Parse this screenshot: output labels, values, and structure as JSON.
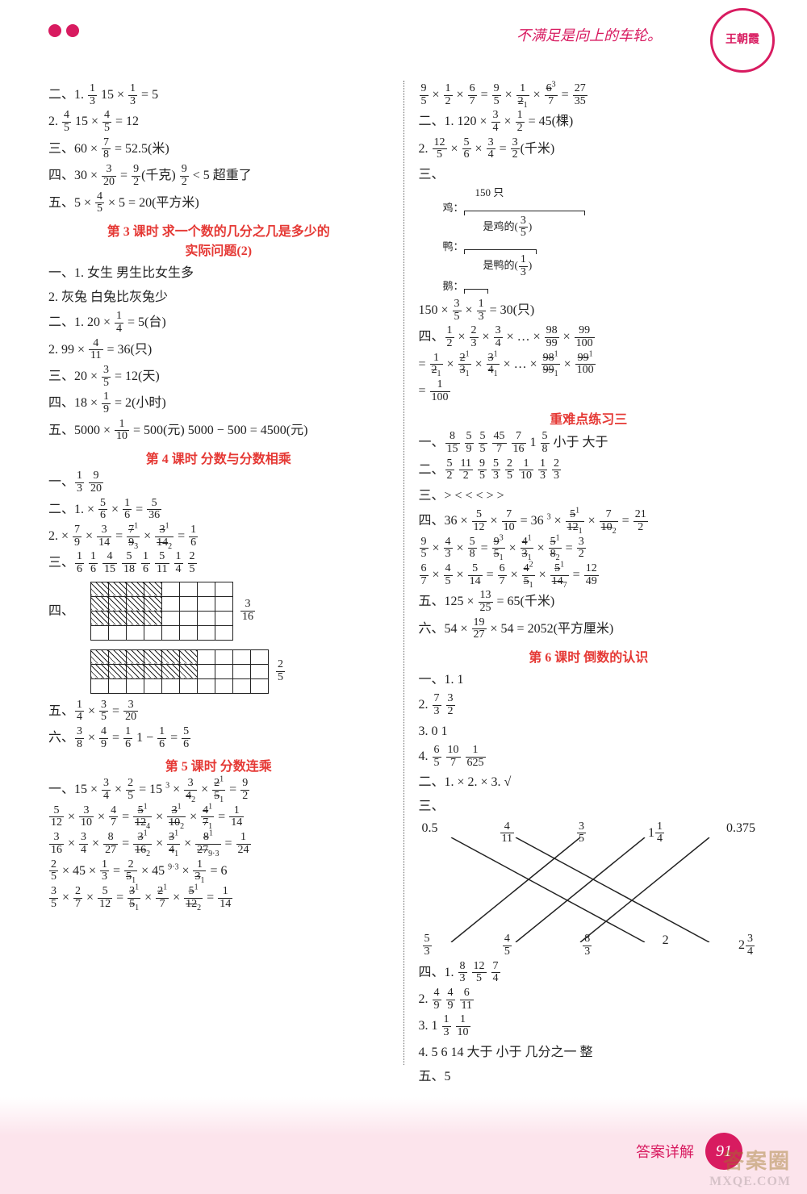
{
  "header": {
    "slogan": "不满足是向上的车轮。",
    "badge": "王朝霞"
  },
  "accent_color": "#d81b60",
  "red": "#e53935",
  "page_number": "91",
  "footer_text": "答案详解",
  "watermark_top": "答案圈",
  "watermark_bottom": "MXQE.COM",
  "left": {
    "s2": {
      "l1": {
        "pre": "二、1. ",
        "f1n": "1",
        "f1d": "3",
        "mid": "  15 × ",
        "f2n": "1",
        "f2d": "3",
        "eq": " = 5"
      },
      "l2": {
        "pre": "      2. ",
        "f1n": "4",
        "f1d": "5",
        "mid": "  15 × ",
        "f2n": "4",
        "f2d": "5",
        "eq": " = 12"
      },
      "l3": {
        "pre": "三、60 × ",
        "f1n": "7",
        "f1d": "8",
        "eq": " = 52.5(米)"
      },
      "l4": {
        "pre": "四、30 × ",
        "f1n": "3",
        "f1d": "20",
        "mid": " = ",
        "f2n": "9",
        "f2d": "2",
        "tail": "(千克)   ",
        "f3n": "9",
        "f3d": "2",
        "tail2": " < 5   超重了"
      },
      "l5": {
        "pre": "五、5 × ",
        "f1n": "4",
        "f1d": "5",
        "eq": " × 5 = 20(平方米)"
      }
    },
    "title3": "第 3 课时  求一个数的几分之几是多少的",
    "title3b": "实际问题(2)",
    "s3": {
      "l1": "一、1. 女生    男生比女生多",
      "l2": "      2. 灰兔    白兔比灰兔少",
      "l3": {
        "pre": "二、1. 20 × ",
        "f1n": "1",
        "f1d": "4",
        "eq": " = 5(台)"
      },
      "l4": {
        "pre": "      2. 99 × ",
        "f1n": "4",
        "f1d": "11",
        "eq": " = 36(只)"
      },
      "l5": {
        "pre": "三、20 × ",
        "f1n": "3",
        "f1d": "5",
        "eq": " = 12(天)"
      },
      "l6": {
        "pre": "四、18 × ",
        "f1n": "1",
        "f1d": "9",
        "eq": " = 2(小时)"
      },
      "l7": {
        "pre": "五、5000 × ",
        "f1n": "1",
        "f1d": "10",
        "eq": " = 500(元)   5000 − 500 = 4500(元)"
      }
    },
    "title4": "第 4 课时  分数与分数相乘",
    "s4": {
      "l1": {
        "pre": "一、",
        "f1n": "1",
        "f1d": "3",
        "sp": "   ",
        "f2n": "9",
        "f2d": "20"
      },
      "l2": {
        "pre": "二、1. × ",
        "f1n": "5",
        "f1d": "6",
        "m": " × ",
        "f2n": "1",
        "f2d": "6",
        "eq": " = ",
        "f3n": "5",
        "f3d": "36"
      },
      "l3": {
        "pre": "      2. × ",
        "f1n": "7",
        "f1d": "9",
        "m": " × ",
        "f2n": "3",
        "f2d": "14",
        "eq2": " = ",
        "a1n": "7",
        "a1d": "9",
        "a1sn": "1",
        "a1sd": "3",
        "m2": " × ",
        "a2n": "3",
        "a2d": "14",
        "a2sn": "1",
        "a2sd": "2",
        "eq": " = ",
        "f3n": "1",
        "f3d": "6"
      },
      "l4": {
        "pre": "三、",
        "vals": [
          [
            "1",
            "6"
          ],
          [
            "1",
            "6"
          ],
          [
            "4",
            "15"
          ],
          [
            "5",
            "18"
          ],
          [
            "1",
            "6"
          ],
          [
            "5",
            "11"
          ],
          [
            "1",
            "4"
          ],
          [
            "2",
            "5"
          ]
        ]
      },
      "four_label": "四、",
      "grid1": {
        "rows": 4,
        "cols": 8,
        "hatch_rows": 3,
        "hatch_cols": 4,
        "resn": "3",
        "resd": "16"
      },
      "grid2": {
        "rows": 3,
        "cols": 10,
        "hatch_rows": 2,
        "hatch_cols": 6,
        "resn": "2",
        "resd": "5"
      },
      "l5": {
        "pre": "五、",
        "f1n": "1",
        "f1d": "4",
        "m": " × ",
        "f2n": "3",
        "f2d": "5",
        "eq": " = ",
        "f3n": "3",
        "f3d": "20"
      },
      "l6": {
        "pre": "六、",
        "f1n": "3",
        "f1d": "8",
        "m": " × ",
        "f2n": "4",
        "f2d": "9",
        "eq": " = ",
        "f3n": "1",
        "f3d": "6",
        "sp": "   1 − ",
        "f4n": "1",
        "f4d": "6",
        "eq2": " = ",
        "f5n": "5",
        "f5d": "6"
      }
    },
    "title5": "第 5 课时  分数连乘",
    "s5": {
      "l1": {
        "pre": "一、15 × ",
        "f1n": "3",
        "f1d": "4",
        "m": " × ",
        "f2n": "2",
        "f2d": "5",
        "eq": " = 15 ",
        "sn1": "3",
        "m2": " × ",
        "f3n": "3",
        "f3d": "4",
        "sd2": "2",
        "m3": " × ",
        "f4n": "2",
        "f4d": "5",
        "sn4": "1",
        "sd4": "1",
        "eq2": " = ",
        "f5n": "9",
        "f5d": "2"
      },
      "l2": {
        "pre": "     ",
        "f1n": "5",
        "f1d": "12",
        "m": " × ",
        "f2n": "3",
        "f2d": "10",
        "m2": " × ",
        "f3n": "4",
        "f3d": "7",
        "eq": " = ",
        "a1n": "5",
        "a1d": "12",
        "a1sn": "1",
        "a1sd": "4",
        "m3": " × ",
        "a2n": "3",
        "a2d": "10",
        "a2sn": "1",
        "a2sd": "2",
        "m4": " × ",
        "a3n": "4",
        "a3d": "7",
        "a3sn": "1",
        "a3sd": "1",
        "eq2": " = ",
        "f4n": "1",
        "f4d": "14"
      },
      "l3": {
        "pre": "     ",
        "f1n": "3",
        "f1d": "16",
        "m": " × ",
        "f2n": "3",
        "f2d": "4",
        "m2": " × ",
        "f3n": "8",
        "f3d": "27",
        "eq": " = ",
        "a1n": "3",
        "a1d": "16",
        "a1sn": "1",
        "a1sd": "2",
        "m3": " × ",
        "a2n": "3",
        "a2d": "4",
        "a2sn": "1",
        "a2sd": "1",
        "m4": " × ",
        "a3n": "8",
        "a3d": "27",
        "a3sn": "1",
        "a3sd": "9·3",
        "eq2": " = ",
        "f4n": "1",
        "f4d": "24"
      },
      "l4": {
        "pre": "     ",
        "f1n": "2",
        "f1d": "5",
        "m": " × 45 × ",
        "f2n": "1",
        "f2d": "3",
        "eq": " = ",
        "a1n": "2",
        "a1d": "5",
        "a1sd": "1",
        "m2": " × 45 ",
        "sn": "9",
        "sn2": "3",
        "m3": " × ",
        "a2n": "1",
        "a2d": "3",
        "a2sd": "1",
        "eq2": " = 6"
      },
      "l5": {
        "pre": "     ",
        "f1n": "3",
        "f1d": "5",
        "m": " × ",
        "f2n": "2",
        "f2d": "7",
        "m2": " × ",
        "f3n": "5",
        "f3d": "12",
        "eq": " = ",
        "a1n": "3",
        "a1d": "5",
        "a1sn": "1",
        "a1sd": "1",
        "m3": " × ",
        "a2n": "2",
        "a2d": "7",
        "a2sn": "1",
        "m4": " × ",
        "a3n": "5",
        "a3d": "12",
        "a3sn": "1",
        "a3sd": "2",
        "eq2": " = ",
        "f4n": "1",
        "f4d": "14"
      }
    }
  },
  "right": {
    "top": {
      "l1": {
        "pre": "",
        "f1n": "9",
        "f1d": "5",
        "m": " × ",
        "f2n": "1",
        "f2d": "2",
        "m2": " × ",
        "f3n": "6",
        "f3d": "7",
        "eq": " = ",
        "a1n": "9",
        "a1d": "5",
        "m3": " × ",
        "a2n": "1",
        "a2d": "2",
        "a2sd": "1",
        "m4": " × ",
        "a3n": "6",
        "a3d": "7",
        "a3sn": "3",
        "eq2": " = ",
        "f4n": "27",
        "f4d": "35"
      },
      "l2": {
        "pre": "二、1. 120 × ",
        "f1n": "3",
        "f1d": "4",
        "m": " × ",
        "f2n": "1",
        "f2d": "2",
        "eq": " = 45(棵)"
      },
      "l3": {
        "pre": "      2. ",
        "f1n": "12",
        "f1d": "5",
        "m": " × ",
        "f2n": "5",
        "f2d": "6",
        "m2": " × ",
        "f3n": "3",
        "f3d": "4",
        "eq": " = ",
        "f4n": "3",
        "f4d": "2",
        "t": "(千米)"
      },
      "diag_label": "三、",
      "diag": {
        "total": "150 只",
        "row_ji": "鸡：",
        "ji_note_pre": "是鸡的",
        "ji_note_n": "3",
        "ji_note_d": "5",
        "row_ya": "鸭：",
        "ya_note_pre": "是鸭的",
        "ya_note_n": "1",
        "ya_note_d": "3",
        "row_e": "鹅："
      },
      "l4": {
        "pre": "    150 × ",
        "f1n": "3",
        "f1d": "5",
        "m": " × ",
        "f2n": "1",
        "f2d": "3",
        "eq": " = 30(只)"
      },
      "l5p": {
        "pre": "四、",
        "f1n": "1",
        "f1d": "2",
        "m": " × ",
        "f2n": "2",
        "f2d": "3",
        "m2": " × ",
        "f3n": "3",
        "f3d": "4",
        "dots": " × … × ",
        "f4n": "98",
        "f4d": "99",
        "m3": " × ",
        "f5n": "99",
        "f5d": "100"
      },
      "l5q": {
        "pre": "    = ",
        "a1n": "1",
        "a1d": "2",
        "a1sd": "1",
        "m": " × ",
        "a2n": "2",
        "a2d": "3",
        "a2sn": "1",
        "a2sd": "1",
        "m2": " × ",
        "a3n": "3",
        "a3d": "4",
        "a3sn": "1",
        "a3sd": "1",
        "dots": " × … × ",
        "a4n": "98",
        "a4d": "99",
        "a4sn": "1",
        "a4sd": "1",
        "m3": " × ",
        "a5n": "99",
        "a5d": "100",
        "a5sn": "1"
      },
      "l5r": {
        "pre": "    = ",
        "f1n": "1",
        "f1d": "100"
      }
    },
    "titleZ": "重难点练习三",
    "sZ": {
      "l1": {
        "pre": "一、",
        "vals": [
          [
            "8",
            "15"
          ],
          [
            "5",
            "9"
          ],
          [
            "5",
            "5"
          ],
          [
            "45",
            "7"
          ],
          [
            "7",
            "16"
          ]
        ],
        "tail": "  1   ",
        "f6n": "5",
        "f6d": "8",
        "t2": "  小于    大于"
      },
      "l2": {
        "pre": "二、",
        "vals": [
          [
            "5",
            "2"
          ],
          [
            "11",
            "2"
          ],
          [
            "9",
            "5"
          ],
          [
            "5",
            "3"
          ],
          [
            "2",
            "5"
          ],
          [
            "1",
            "10"
          ],
          [
            "1",
            "3"
          ],
          [
            "2",
            "3"
          ]
        ]
      },
      "l3": "三、>  <  <  <  >  >",
      "l4": {
        "pre": "四、36 × ",
        "f1n": "5",
        "f1d": "12",
        "m": " × ",
        "f2n": "7",
        "f2d": "10",
        "eq": " = 36 ",
        "sn": "3",
        "m2": " × ",
        "a1n": "5",
        "a1d": "12",
        "a1sn": "1",
        "a1sd": "1",
        "m3": " × ",
        "a2n": "7",
        "a2d": "10",
        "a2sd": "2",
        "eq2": " = ",
        "f3n": "21",
        "f3d": "2"
      },
      "l5": {
        "pre": "",
        "f1n": "9",
        "f1d": "5",
        "m": " × ",
        "f2n": "4",
        "f2d": "3",
        "m2": " × ",
        "f3n": "5",
        "f3d": "8",
        "eq": " = ",
        "a1n": "9",
        "a1d": "5",
        "a1sn": "3",
        "a1sd": "1",
        "m3": " × ",
        "a2n": "4",
        "a2d": "3",
        "a2sn": "1",
        "a2sd": "1",
        "m4": " × ",
        "a3n": "5",
        "a3d": "8",
        "a3sn": "1",
        "a3sd": "2",
        "eq2": " = ",
        "f4n": "3",
        "f4d": "2"
      },
      "l6": {
        "pre": "",
        "f1n": "6",
        "f1d": "7",
        "m": " × ",
        "f2n": "4",
        "f2d": "5",
        "m2": " × ",
        "f3n": "5",
        "f3d": "14",
        "eq": " = ",
        "a1n": "6",
        "a1d": "7",
        "m3": " × ",
        "a2n": "4",
        "a2d": "5",
        "a2sn": "2",
        "a2sd": "1",
        "m4": " × ",
        "a3n": "5",
        "a3d": "14",
        "a3sn": "1",
        "a3sd": "7",
        "eq2": " = ",
        "f4n": "12",
        "f4d": "49"
      },
      "l7": {
        "pre": "五、125 × ",
        "f1n": "13",
        "f1d": "25",
        "eq": " = 65(千米)"
      },
      "l8": {
        "pre": "六、54 × ",
        "f1n": "19",
        "f1d": "27",
        "eq": " × 54 = 2052(平方厘米)"
      }
    },
    "title6": "第 6 课时  倒数的认识",
    "s6": {
      "l1": "一、1. 1",
      "l2": {
        "pre": "      2. ",
        "f1n": "7",
        "f1d": "3",
        "sp": "   ",
        "f2n": "3",
        "f2d": "2"
      },
      "l3": "      3. 0   1",
      "l4": {
        "pre": "      4. ",
        "f1n": "6",
        "f1d": "5",
        "sp": "   ",
        "f2n": "10",
        "f2d": "7",
        "sp2": "   ",
        "f3n": "1",
        "f3d": "625"
      },
      "l5": "二、1. ×   2. ×   3. √",
      "match_top": [
        "0.5",
        "4/11",
        "3/5",
        "1 1/4",
        "0.375"
      ],
      "match_bot": [
        "5/3",
        "4/5",
        "8/3",
        "2",
        "2 3/4"
      ],
      "match_lines": [
        [
          0,
          3
        ],
        [
          1,
          4
        ],
        [
          2,
          0
        ],
        [
          3,
          1
        ],
        [
          4,
          2
        ]
      ],
      "l6": {
        "pre": "四、1. ",
        "f1n": "8",
        "f1d": "3",
        "sp": "   ",
        "f2n": "12",
        "f2d": "5",
        "sp2": "   ",
        "f3n": "7",
        "f3d": "4"
      },
      "l7": {
        "pre": "      2. ",
        "f1n": "4",
        "f1d": "9",
        "sp": "   ",
        "f2n": "4",
        "f2d": "9",
        "sp2": "   ",
        "f3n": "6",
        "f3d": "11"
      },
      "l8": {
        "pre": "      3. 1   ",
        "f1n": "1",
        "f1d": "3",
        "sp": "   ",
        "f2n": "1",
        "f2d": "10"
      },
      "l9": "      4. 5  6  14   大于   小于   几分之一   整",
      "l10": "五、5"
    }
  }
}
